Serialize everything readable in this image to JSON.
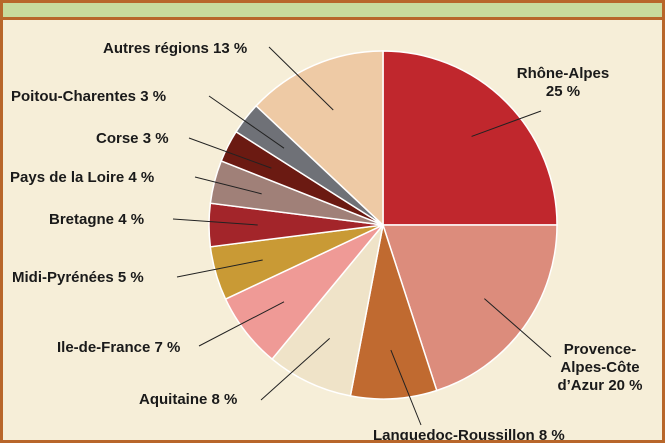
{
  "chart_data": {
    "type": "pie",
    "categories": [
      "Rhône-Alpes",
      "Provence-Alpes-Côte d’Azur",
      "Languedoc-Roussillon",
      "Aquitaine",
      "Ile-de-France",
      "Midi-Pyrénées",
      "Bretagne",
      "Pays de la Loire",
      "Corse",
      "Poitou-Charentes",
      "Autres régions"
    ],
    "values": [
      25,
      20,
      8,
      8,
      7,
      5,
      4,
      4,
      3,
      3,
      13
    ],
    "value_labels": [
      "25 %",
      "20 %",
      "8 %",
      "8 %",
      "7 %",
      "5 %",
      "4 %",
      "4 %",
      "3 %",
      "3 %",
      "13 %"
    ],
    "colors": [
      "#c0272d",
      "#dc8c7c",
      "#c06a30",
      "#efe3c8",
      "#ef9a96",
      "#c99a35",
      "#a3252a",
      "#a08078",
      "#6b1a12",
      "#6f7177",
      "#eecaa5"
    ]
  }
}
